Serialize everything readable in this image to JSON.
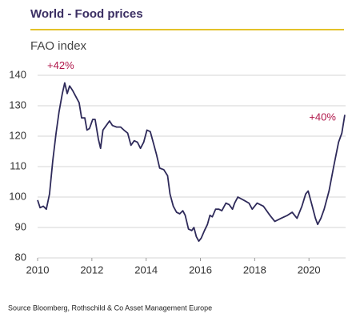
{
  "chart_data": {
    "type": "line",
    "title": "World - Food prices",
    "subtitle": "FAO index",
    "source": "Source Bloomberg, Rothschild & Co Asset Management Europe",
    "annotations": [
      {
        "text": "+42%",
        "x": 2010.85,
        "y": 143
      },
      {
        "text": "+40%",
        "x": 2020.5,
        "y": 126
      }
    ],
    "xlim": [
      2010,
      2021.35
    ],
    "xticks": [
      2010,
      2012,
      2014,
      2016,
      2018,
      2020
    ],
    "ylim": [
      80,
      140
    ],
    "yticks": [
      80,
      90,
      100,
      110,
      120,
      130,
      140
    ],
    "grid": true,
    "series": [
      {
        "color": "#2e2a5a",
        "x": [
          2010.0,
          2010.09,
          2010.21,
          2010.32,
          2010.44,
          2010.56,
          2010.68,
          2010.79,
          2010.91,
          2011.0,
          2011.09,
          2011.18,
          2011.29,
          2011.41,
          2011.53,
          2011.62,
          2011.74,
          2011.82,
          2011.91,
          2012.03,
          2012.12,
          2012.24,
          2012.32,
          2012.41,
          2012.53,
          2012.65,
          2012.76,
          2012.91,
          2013.06,
          2013.18,
          2013.32,
          2013.44,
          2013.56,
          2013.68,
          2013.79,
          2013.91,
          2014.03,
          2014.15,
          2014.26,
          2014.38,
          2014.5,
          2014.65,
          2014.79,
          2014.88,
          2015.0,
          2015.12,
          2015.24,
          2015.35,
          2015.44,
          2015.56,
          2015.68,
          2015.76,
          2015.85,
          2015.94,
          2016.03,
          2016.15,
          2016.26,
          2016.35,
          2016.44,
          2016.56,
          2016.68,
          2016.79,
          2016.94,
          2017.06,
          2017.18,
          2017.26,
          2017.38,
          2017.59,
          2017.79,
          2017.91,
          2018.09,
          2018.32,
          2018.56,
          2018.74,
          2018.97,
          2019.21,
          2019.38,
          2019.56,
          2019.74,
          2019.88,
          2019.97,
          2020.09,
          2020.24,
          2020.32,
          2020.44,
          2020.56,
          2020.74,
          2020.91,
          2021.09,
          2021.21,
          2021.32
        ],
        "values": [
          99,
          96.5,
          97,
          96,
          101,
          112,
          121,
          128,
          134,
          137.5,
          134,
          136.5,
          135,
          133,
          131,
          126,
          126,
          122,
          122.5,
          125.5,
          125.5,
          119,
          116,
          122,
          123.5,
          125,
          123.5,
          123,
          123,
          122,
          121,
          117,
          118.5,
          118,
          116,
          118,
          122,
          121.5,
          118,
          114,
          109.5,
          109,
          107,
          101,
          97,
          95,
          94.5,
          95.5,
          94,
          89.5,
          89,
          90,
          87,
          85.5,
          86.5,
          89,
          91,
          94,
          93.5,
          96,
          96,
          95.5,
          98,
          97.5,
          96,
          98,
          100,
          99,
          98,
          96,
          98,
          97,
          94,
          92,
          93,
          94,
          95,
          93,
          97,
          101,
          102,
          98,
          93,
          91,
          93,
          96,
          102,
          110,
          118,
          121,
          127
        ]
      }
    ]
  }
}
